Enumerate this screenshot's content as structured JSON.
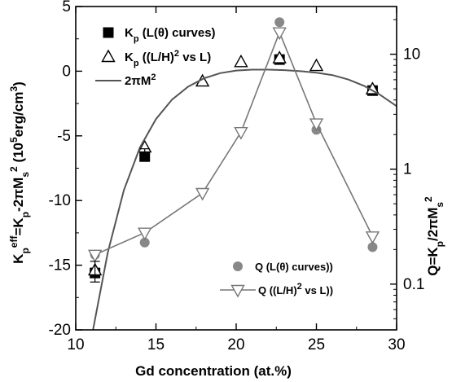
{
  "chart_data": {
    "type": "scatter",
    "x_axis": {
      "label": "Gd concentration (at.%)",
      "range": [
        10,
        30
      ],
      "ticks": [
        10,
        15,
        20,
        25,
        30
      ],
      "tick_labels": [
        "10",
        "15",
        "20",
        "25",
        "30"
      ]
    },
    "y_left_axis": {
      "label_parts": [
        "K",
        "p",
        "eff",
        "=K",
        "p",
        "-2πM",
        "s",
        "2",
        " (10",
        "5",
        "erg/cm",
        "3",
        ")"
      ],
      "range": [
        -20,
        5
      ],
      "ticks": [
        -20,
        -15,
        -10,
        -5,
        0,
        5
      ],
      "tick_labels": [
        "-20",
        "-15",
        "-10",
        "-5",
        "0",
        "5"
      ]
    },
    "y_right_axis": {
      "label_parts": [
        "Q=K",
        "p",
        "/2πM",
        "s",
        "2"
      ],
      "scale": "log",
      "range": [
        0.04,
        26
      ],
      "ticks": [
        0.1,
        1,
        10
      ],
      "tick_labels": [
        "0.1",
        "1",
        "10"
      ]
    },
    "series": [
      {
        "name": "Kp (L(θ) curves)",
        "axis": "left",
        "marker": "filled-square",
        "color": "#000000",
        "x": [
          11.2,
          14.3,
          22.7,
          28.5
        ],
        "y": [
          -15.6,
          -6.6,
          0.9,
          -1.5
        ]
      },
      {
        "name": "Kp ((L/H)² vs L)",
        "axis": "left",
        "marker": "open-triangle-up",
        "color": "#000000",
        "x": [
          11.2,
          14.3,
          17.9,
          20.3,
          22.7,
          25.0,
          28.5
        ],
        "y": [
          -15.4,
          -5.9,
          -0.8,
          0.7,
          1.0,
          0.4,
          -1.4
        ]
      },
      {
        "name": "2πM²",
        "axis": "left",
        "marker": "line",
        "color": "#555555",
        "x": [
          11.0,
          12.0,
          13.0,
          14.0,
          15.0,
          16.0,
          17.0,
          18.0,
          19.0,
          20.0,
          21.0,
          22.0,
          23.0,
          24.0,
          25.0,
          26.0,
          27.0,
          28.0,
          29.0,
          30.0
        ],
        "y": [
          -20.5,
          -14.0,
          -9.2,
          -5.9,
          -3.7,
          -2.2,
          -1.2,
          -0.55,
          -0.15,
          0.05,
          0.12,
          0.12,
          0.08,
          0.0,
          -0.12,
          -0.3,
          -0.65,
          -1.15,
          -1.85,
          -2.7
        ]
      },
      {
        "name": "Q (L(θ) curves))",
        "axis": "right",
        "marker": "filled-circle",
        "color": "#888888",
        "x": [
          11.2,
          14.3,
          22.7,
          25.0,
          28.5
        ],
        "y": [
          0.18,
          0.23,
          19.0,
          2.2,
          0.21
        ]
      },
      {
        "name": "Q ((L/H)² vs L))",
        "axis": "right",
        "marker": "open-triangle-down-line",
        "color": "#777777",
        "x": [
          11.2,
          14.3,
          17.9,
          20.3,
          22.7,
          25.0,
          28.5
        ],
        "y": [
          0.18,
          0.28,
          0.62,
          2.1,
          15.5,
          2.5,
          0.26
        ]
      }
    ],
    "error_bars": [
      {
        "axis": "left",
        "x": 11.2,
        "y": -15.5,
        "err": 0.8
      },
      {
        "axis": "left",
        "x": 14.3,
        "y": -6.4,
        "err": 0.4
      }
    ],
    "legend_top": [
      {
        "marker": "filled-square",
        "parts": [
          "K",
          "p",
          " (L(θ) curves)"
        ]
      },
      {
        "marker": "open-triangle-up",
        "parts": [
          "K",
          "p",
          " ((L/H)",
          "2",
          " vs L)"
        ]
      },
      {
        "marker": "line",
        "parts": [
          "2πM",
          "2"
        ]
      }
    ],
    "legend_bottom": [
      {
        "marker": "filled-circle",
        "text": "Q (L(θ) curves))"
      },
      {
        "marker": "open-triangle-down-line",
        "parts": [
          "Q ((L/H)",
          "2",
          " vs L))"
        ]
      }
    ],
    "legend_placement": "top-left and bottom-right",
    "grid": false
  }
}
